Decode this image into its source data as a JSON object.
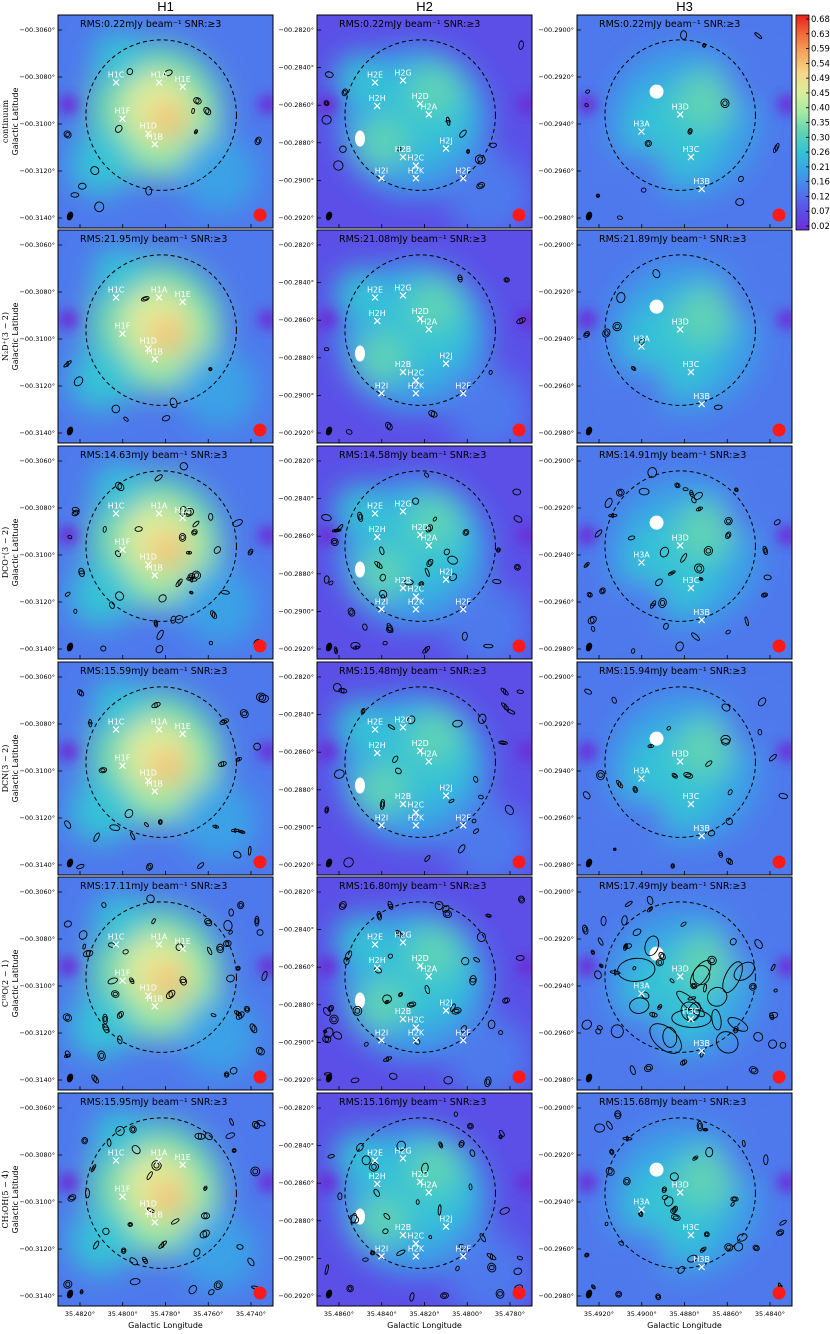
{
  "figure": {
    "column_titles": [
      "H1",
      "H2",
      "H3"
    ],
    "row_labels": [
      "continuum",
      "N₂D⁺(3 − 2)",
      "DCO⁺(3 − 2)",
      "DCN(3 − 2)",
      "C¹⁸O(2 − 1)",
      "CH₃OH(5 − 4)"
    ],
    "ylabel": "Galactic Latitude",
    "xlabel": "Galactic Longitude",
    "rms_suffix": "SNR:≥3",
    "rms_values": [
      [
        "RMS:0.22mJy beam⁻¹",
        "RMS:0.22mJy beam⁻¹",
        "RMS:0.22mJy beam⁻¹"
      ],
      [
        "RMS:21.95mJy beam⁻¹",
        "RMS:21.08mJy beam⁻¹",
        "RMS:21.89mJy beam⁻¹"
      ],
      [
        "RMS:14.63mJy beam⁻¹",
        "RMS:14.58mJy beam⁻¹",
        "RMS:14.91mJy beam⁻¹"
      ],
      [
        "RMS:15.59mJy beam⁻¹",
        "RMS:15.48mJy beam⁻¹",
        "RMS:15.94mJy beam⁻¹"
      ],
      [
        "RMS:17.11mJy beam⁻¹",
        "RMS:16.80mJy beam⁻¹",
        "RMS:17.49mJy beam⁻¹"
      ],
      [
        "RMS:15.95mJy beam⁻¹",
        "RMS:15.16mJy beam⁻¹",
        "RMS:15.68mJy beam⁻¹"
      ]
    ],
    "yticks": [
      [
        "−00.3060°",
        "−00.3080°",
        "−00.3100°",
        "−00.3120°",
        "−00.3140°"
      ],
      [
        "−00.2820°",
        "−00.2840°",
        "−00.2860°",
        "−00.2880°",
        "−00.2900°",
        "−00.2920°"
      ],
      [
        "−00.2900°",
        "−00.2920°",
        "−00.2940°",
        "−00.2960°",
        "−00.2980°"
      ]
    ],
    "xticks": [
      [
        "35.4820°",
        "35.4800°",
        "35.4780°",
        "35.4760°",
        "35.4740°"
      ],
      [
        "35.4860°",
        "35.4840°",
        "35.4820°",
        "35.4800°",
        "35.4780°"
      ],
      [
        "35.4920°",
        "35.4900°",
        "35.4880°",
        "35.4860°",
        "35.4840°"
      ]
    ],
    "colorbar": {
      "ticks": [
        "0.68",
        "0.63",
        "0.59",
        "0.54",
        "0.49",
        "0.45",
        "0.40",
        "0.35",
        "0.30",
        "0.26",
        "0.21",
        "0.16",
        "0.12",
        "0.07",
        "0.02"
      ],
      "colors": [
        "#e8201c",
        "#f26c3c",
        "#f7a95f",
        "#f5d98a",
        "#d8ef9c",
        "#a4e9a2",
        "#5fd3b4",
        "#35c2d6",
        "#3aa2e6",
        "#4e79ec",
        "#5b4fe7",
        "#6b2fd8"
      ]
    },
    "sources": [
      [
        "H1A",
        "H1B",
        "H1C",
        "H1D",
        "H1E",
        "H1F"
      ],
      [
        "H2A",
        "H2B",
        "H2C",
        "H2D",
        "H2E",
        "H2F",
        "H2G",
        "H2H",
        "H2I",
        "H2J",
        "H2K"
      ],
      [
        "H3A",
        "H3B",
        "H3C",
        "H3D"
      ]
    ]
  }
}
